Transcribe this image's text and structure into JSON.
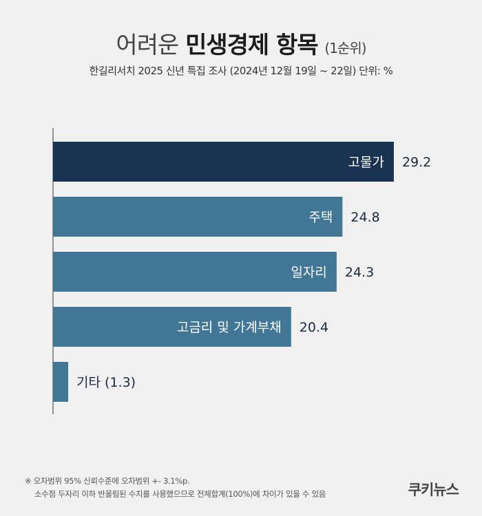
{
  "header": {
    "title_light": "어려운",
    "title_bold": "민생경제 항목",
    "title_small": "(1순위)",
    "subtitle": "한길리서치 2025 신년 특집 조사 (2024년 12월 19일 ~ 22일) 단위: %"
  },
  "chart_data": {
    "type": "bar",
    "orientation": "horizontal",
    "categories": [
      "고물가",
      "주택",
      "일자리",
      "고금리 및 가계부채",
      "기타"
    ],
    "values": [
      29.2,
      24.8,
      24.3,
      20.4,
      1.3
    ],
    "value_labels": [
      "29.2",
      "24.8",
      "24.3",
      "20.4",
      "기타 (1.3)"
    ],
    "unit": "%",
    "xlim": [
      0,
      30
    ],
    "colors": {
      "highlight": "#1b3352",
      "default": "#427695",
      "label_inside": "#ffffff",
      "label_outside": "#1b2b3f"
    },
    "highlight_index": 0
  },
  "footnote": {
    "line1": "※ 오차범위 95% 신뢰수준에 오차범위 +- 3.1%p.",
    "line2": "소수점 두자리 이하 반올림된 수치를 사용했으므로 전체합계(100%)에 차이가 있을 수 있음"
  },
  "brand": {
    "logo_text": "쿠키뉴스"
  }
}
